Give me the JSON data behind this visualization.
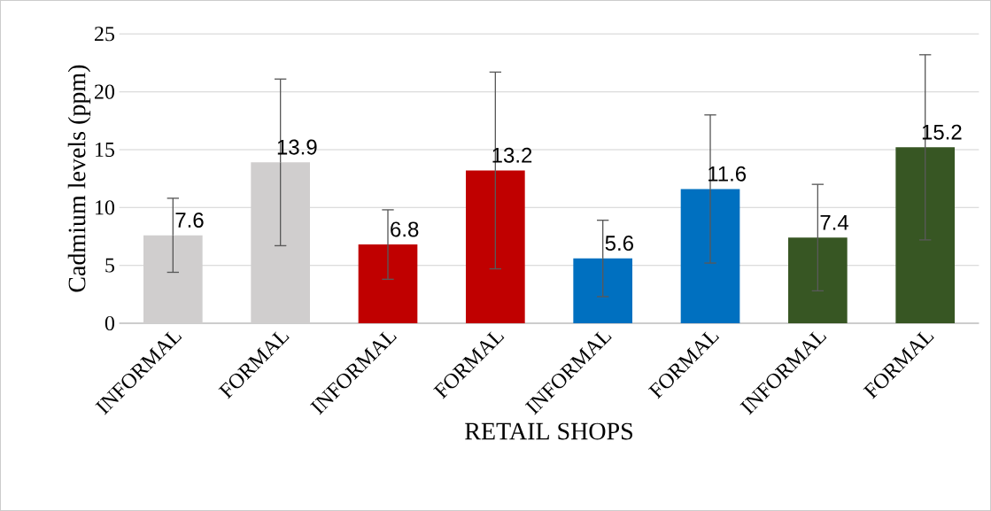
{
  "chart_data": {
    "type": "bar",
    "categories": [
      "INFORMAL",
      "FORMAL",
      "INFORMAL",
      "FORMAL",
      "INFORMAL",
      "FORMAL",
      "INFORMAL",
      "FORMAL"
    ],
    "values": [
      7.6,
      13.9,
      6.8,
      13.2,
      5.6,
      11.6,
      7.4,
      15.2
    ],
    "colors": [
      "#d0cece",
      "#d0cece",
      "#c00000",
      "#c00000",
      "#0070c0",
      "#0070c0",
      "#375623",
      "#375623"
    ],
    "errors": [
      3.2,
      7.2,
      3.0,
      8.5,
      3.3,
      6.4,
      4.6,
      8.0
    ],
    "data_labels": true,
    "xlabel": "RETAIL SHOPS",
    "ylabel": "Cadmium levels (ppm)",
    "ylim": [
      0,
      25
    ],
    "yticks": [
      0,
      5,
      10,
      15,
      20,
      25
    ],
    "grid": "y"
  }
}
